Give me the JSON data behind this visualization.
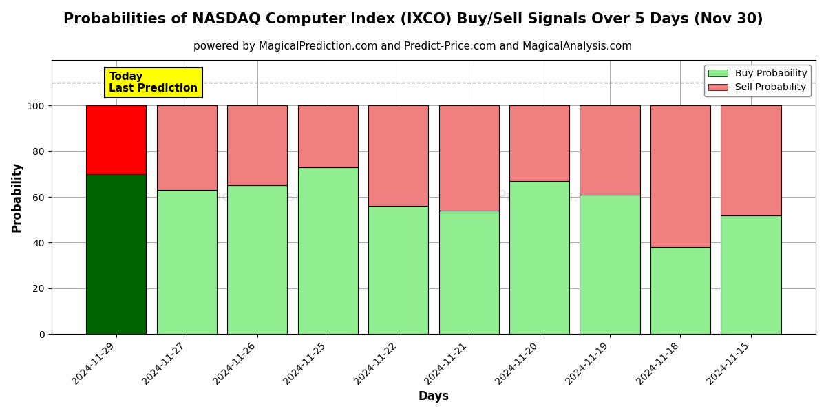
{
  "title": "Probabilities of NASDAQ Computer Index (IXCO) Buy/Sell Signals Over 5 Days (Nov 30)",
  "subtitle": "powered by MagicalPrediction.com and Predict-Price.com and MagicalAnalysis.com",
  "xlabel": "Days",
  "ylabel": "Probability",
  "categories": [
    "2024-11-29",
    "2024-11-27",
    "2024-11-26",
    "2024-11-25",
    "2024-11-22",
    "2024-11-21",
    "2024-11-20",
    "2024-11-19",
    "2024-11-18",
    "2024-11-15"
  ],
  "buy_values": [
    70,
    63,
    65,
    73,
    56,
    54,
    67,
    61,
    38,
    52
  ],
  "sell_values": [
    30,
    37,
    35,
    27,
    44,
    46,
    33,
    39,
    62,
    48
  ],
  "today_bar_buy_color": "#006400",
  "today_bar_sell_color": "#ff0000",
  "other_bar_buy_color": "#90EE90",
  "other_bar_sell_color": "#F08080",
  "today_label": "Today\nLast Prediction",
  "today_label_bg": "#ffff00",
  "legend_buy_color": "#90EE90",
  "legend_sell_color": "#F08080",
  "ylim": [
    0,
    120
  ],
  "yticks": [
    0,
    20,
    40,
    60,
    80,
    100
  ],
  "dashed_line_y": 110,
  "bar_width": 0.85,
  "background_color": "#ffffff",
  "grid_color": "#aaaaaa",
  "title_fontsize": 15,
  "subtitle_fontsize": 11
}
